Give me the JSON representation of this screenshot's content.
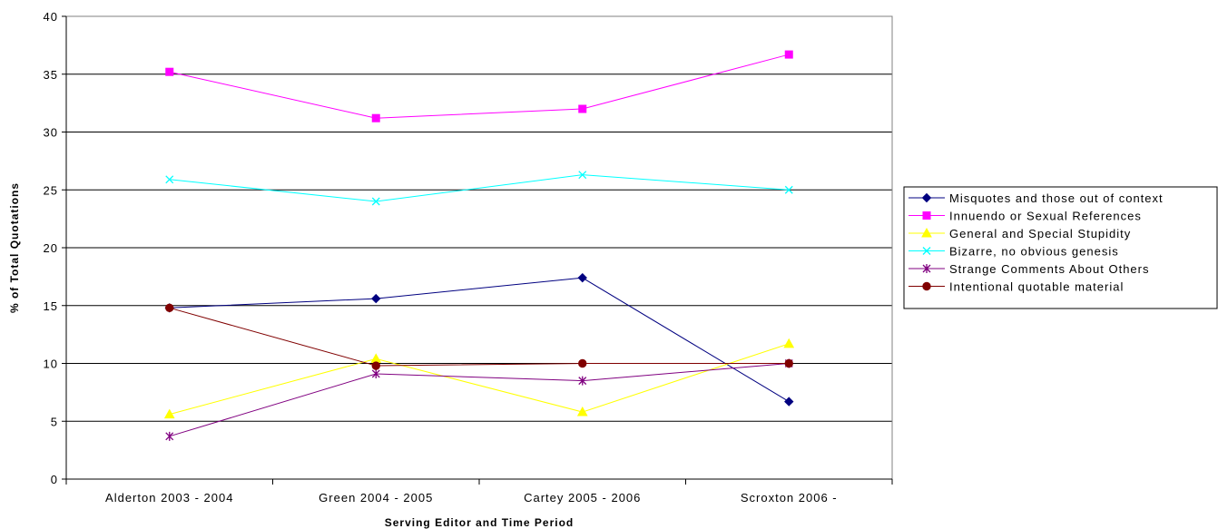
{
  "chart_data": {
    "type": "line",
    "title": "",
    "xlabel": "Serving Editor and Time Period",
    "ylabel": "% of Total Quotations",
    "ylim": [
      0,
      40
    ],
    "yticks": [
      0,
      5,
      10,
      15,
      20,
      25,
      30,
      35,
      40
    ],
    "grid": true,
    "legend_position": "right",
    "categories": [
      "Alderton 2003 - 2004",
      "Green 2004 - 2005",
      "Cartey 2005 - 2006",
      "Scroxton 2006 -"
    ],
    "series": [
      {
        "name": "Misquotes and those out of context",
        "values": [
          14.8,
          15.6,
          17.4,
          6.7
        ],
        "color": "#000080",
        "marker": "diamond"
      },
      {
        "name": "Innuendo or Sexual References",
        "values": [
          35.2,
          31.2,
          32.0,
          36.7
        ],
        "color": "#FF00FF",
        "marker": "square"
      },
      {
        "name": "General and Special Stupidity",
        "values": [
          5.6,
          10.4,
          5.8,
          11.7
        ],
        "color": "#FFFF00",
        "marker": "triangle"
      },
      {
        "name": "Bizarre, no obvious genesis",
        "values": [
          25.9,
          24.0,
          26.3,
          25.0
        ],
        "color": "#00FFFF",
        "marker": "x"
      },
      {
        "name": "Strange Comments About Others",
        "values": [
          3.7,
          9.1,
          8.5,
          10.0
        ],
        "color": "#800080",
        "marker": "star"
      },
      {
        "name": "Intentional quotable material",
        "values": [
          14.8,
          9.8,
          10.0,
          10.0
        ],
        "color": "#800000",
        "marker": "circle"
      }
    ]
  }
}
